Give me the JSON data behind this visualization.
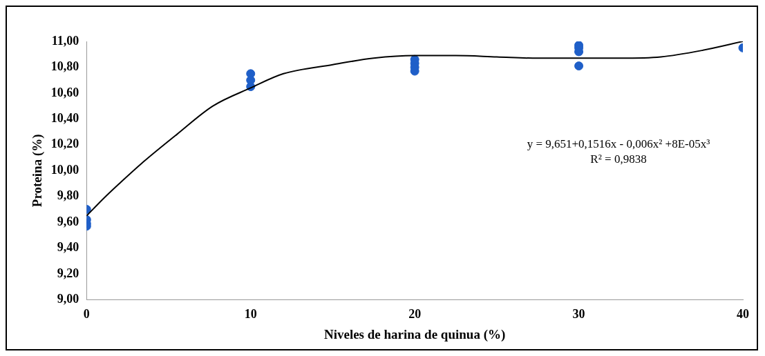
{
  "chart_data": {
    "type": "scatter",
    "xlabel": "Niveles de harina de quinua (%)",
    "ylabel": "Proteina (%)",
    "series": [
      {
        "color": "#1f5fc8",
        "marker": "circle",
        "x": [
          0,
          0,
          0,
          0,
          10,
          10,
          10,
          20,
          20,
          20,
          20,
          30,
          30,
          30,
          30,
          40
        ],
        "values": [
          9.7,
          9.62,
          9.59,
          9.57,
          10.75,
          10.7,
          10.65,
          10.86,
          10.83,
          10.8,
          10.77,
          10.97,
          10.95,
          10.92,
          10.81,
          10.95
        ]
      },
      {
        "type": "line",
        "color": "#000000",
        "marker": "none",
        "x": [
          0,
          1,
          2,
          3.3,
          5.5,
          7.7,
          10,
          12,
          15,
          17.5,
          20,
          22.5,
          25,
          27.5,
          30,
          32.5,
          35,
          37.5,
          40
        ],
        "values": [
          9.65,
          9.78,
          9.9,
          10.05,
          10.28,
          10.5,
          10.64,
          10.75,
          10.82,
          10.87,
          10.89,
          10.89,
          10.88,
          10.87,
          10.87,
          10.87,
          10.88,
          10.93,
          11.0
        ]
      }
    ],
    "xlim": [
      0,
      40
    ],
    "xticks": [
      0,
      10,
      20,
      30,
      40
    ],
    "ylim": [
      9,
      11
    ],
    "yticks": [
      {
        "value": 9,
        "label": "9,00"
      },
      {
        "value": 9.2,
        "label": "9,20"
      },
      {
        "value": 9.4,
        "label": "9,40"
      },
      {
        "value": 9.6,
        "label": "9,60"
      },
      {
        "value": 9.8,
        "label": "9,80"
      },
      {
        "value": 10,
        "label": "10,00"
      },
      {
        "value": 10.2,
        "label": "10,20"
      },
      {
        "value": 10.4,
        "label": "10,40"
      },
      {
        "value": 10.6,
        "label": "10,60"
      },
      {
        "value": 10.8,
        "label": "10,80"
      },
      {
        "value": 11,
        "label": "11,00"
      }
    ],
    "annotations": [
      "y = 9,651+0,1516x - 0,006x² +8E-05x³",
      "R² = 0,9838"
    ],
    "grid": false,
    "legend": false
  }
}
